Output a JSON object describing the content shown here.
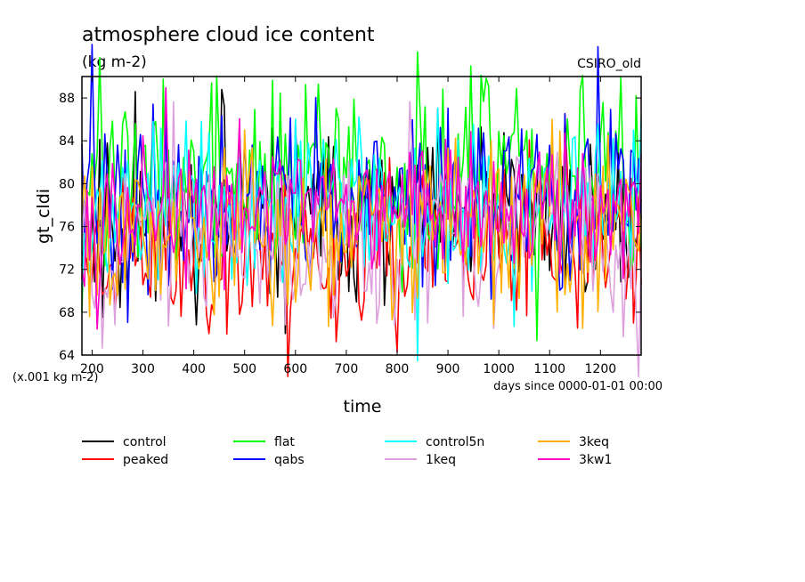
{
  "chart_data": {
    "type": "line",
    "title": "atmosphere cloud ice content",
    "subtitle": "(kg m-2)",
    "source_label": "CSIRO_old",
    "xlabel": "time",
    "ylabel": "gt_cldi",
    "y_units_note": "(x.001 kg m-2)",
    "x_units_note": "days since 0000-01-01 00:00",
    "xlim": [
      180,
      1280
    ],
    "ylim": [
      64,
      90
    ],
    "xticks": [
      200,
      300,
      400,
      500,
      600,
      700,
      800,
      900,
      1000,
      1100,
      1200
    ],
    "yticks": [
      64,
      68,
      72,
      76,
      80,
      84,
      88
    ],
    "grid": false,
    "legend_position": "bottom",
    "sampling": {
      "x_start": 180,
      "x_end": 1280,
      "x_step": 5
    },
    "series": [
      {
        "name": "control",
        "color": "#000000",
        "mean": 77.0,
        "amp": 5.5,
        "seed": 11
      },
      {
        "name": "peaked",
        "color": "#ff0000",
        "mean": 73.5,
        "amp": 5.5,
        "seed": 23
      },
      {
        "name": "flat",
        "color": "#00ff00",
        "mean": 80.5,
        "amp": 6.5,
        "seed": 37
      },
      {
        "name": "qabs",
        "color": "#0000ff",
        "mean": 78.5,
        "amp": 6.0,
        "seed": 41
      },
      {
        "name": "control5n",
        "color": "#00ffff",
        "mean": 78.0,
        "amp": 5.5,
        "seed": 53
      },
      {
        "name": "1keq",
        "color": "#dda0dd",
        "mean": 75.0,
        "amp": 5.5,
        "seed": 67
      },
      {
        "name": "3keq",
        "color": "#ffb000",
        "mean": 76.0,
        "amp": 6.0,
        "seed": 79
      },
      {
        "name": "3kw1",
        "color": "#ff00c8",
        "mean": 77.5,
        "amp": 4.5,
        "seed": 97
      }
    ]
  }
}
